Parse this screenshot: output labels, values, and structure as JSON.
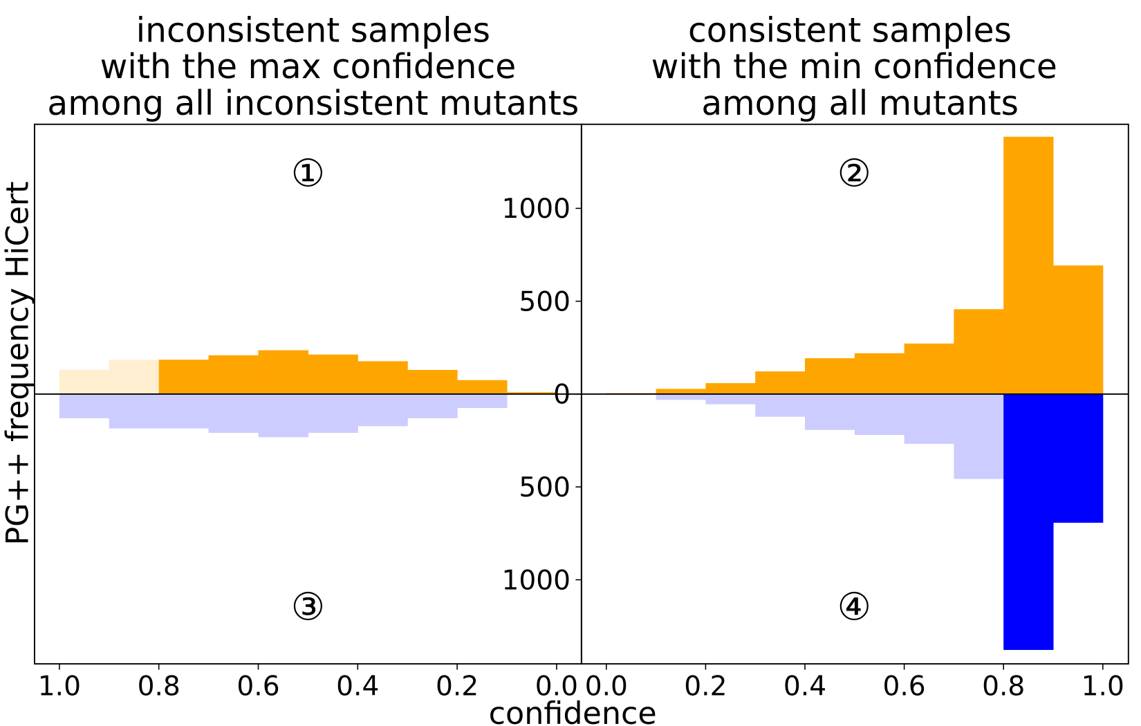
{
  "chart_data": {
    "type": "bar",
    "xlabel": "confidence",
    "ylabel": "PG++ frequency HiCert",
    "ylim": [
      -1453,
      1453
    ],
    "yticks": [
      1000,
      500,
      0,
      500,
      1000
    ],
    "colors": {
      "orange": "#FFA500",
      "orange_faded": "#FFEEd0",
      "blue_faded": "#CCCCFF",
      "blue": "#0000FF"
    },
    "panels": [
      {
        "title": [
          "inconsistent samples",
          "with the max confidence",
          "among all inconsistent mutants"
        ],
        "xlim": [
          1.0,
          0.0
        ],
        "xticks": [
          "1.0",
          "0.8",
          "0.6",
          "0.4",
          "0.2",
          "0.0"
        ],
        "bins": [
          [
            1.0,
            0.9
          ],
          [
            0.9,
            0.8
          ],
          [
            0.8,
            0.7
          ],
          [
            0.7,
            0.6
          ],
          [
            0.6,
            0.5
          ],
          [
            0.5,
            0.4
          ],
          [
            0.4,
            0.3
          ],
          [
            0.3,
            0.2
          ],
          [
            0.2,
            0.1
          ],
          [
            0.1,
            0.0
          ]
        ],
        "top_series": {
          "name": "HiCert",
          "values": [
            130,
            185,
            185,
            209,
            236,
            213,
            177,
            130,
            75,
            10
          ],
          "faded": [
            true,
            true,
            false,
            false,
            false,
            false,
            false,
            false,
            false,
            false
          ]
        },
        "bottom_series": {
          "name": "PG++",
          "values": [
            130,
            185,
            185,
            209,
            232,
            209,
            173,
            130,
            75,
            0
          ],
          "faded": [
            true,
            true,
            true,
            true,
            true,
            true,
            true,
            true,
            true,
            true
          ]
        },
        "annotations": [
          "①",
          "③"
        ]
      },
      {
        "title": [
          "consistent samples",
          "with the min confidence",
          "among all mutants"
        ],
        "xlim": [
          0.0,
          1.0
        ],
        "xticks": [
          "0.0",
          "0.2",
          "0.4",
          "0.6",
          "0.8",
          "1.0"
        ],
        "bins": [
          [
            0.0,
            0.1
          ],
          [
            0.1,
            0.2
          ],
          [
            0.2,
            0.3
          ],
          [
            0.3,
            0.4
          ],
          [
            0.4,
            0.5
          ],
          [
            0.5,
            0.6
          ],
          [
            0.6,
            0.7
          ],
          [
            0.7,
            0.8
          ],
          [
            0.8,
            0.9
          ],
          [
            0.9,
            1.0
          ]
        ],
        "top_series": {
          "name": "HiCert",
          "values": [
            5,
            28,
            59,
            122,
            193,
            220,
            272,
            457,
            1386,
            693
          ],
          "faded": [
            false,
            false,
            false,
            false,
            false,
            false,
            false,
            false,
            false,
            false
          ]
        },
        "bottom_series": {
          "name": "PG++",
          "values": [
            3,
            31,
            55,
            122,
            193,
            220,
            268,
            457,
            1378,
            693
          ],
          "faded": [
            true,
            true,
            true,
            true,
            true,
            true,
            true,
            true,
            false,
            false
          ]
        },
        "annotations": [
          "②",
          "④"
        ]
      }
    ]
  }
}
